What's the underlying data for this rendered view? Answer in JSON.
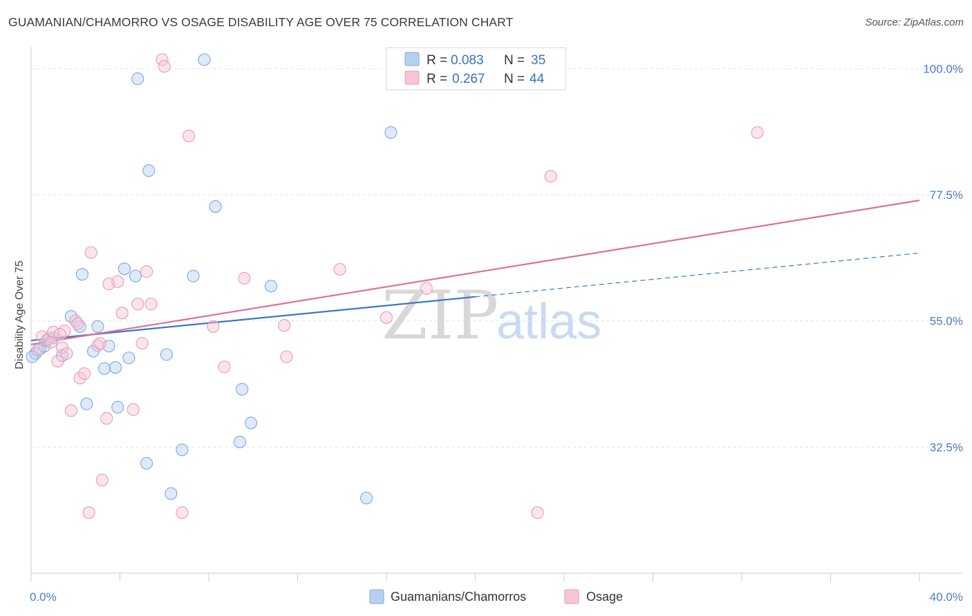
{
  "title": "GUAMANIAN/CHAMORRO VS OSAGE DISABILITY AGE OVER 75 CORRELATION CHART",
  "source": "Source: ZipAtlas.com",
  "watermark": {
    "zip": "ZIP",
    "atlas": "atlas"
  },
  "chart_data": {
    "type": "scatter",
    "title": "GUAMANIAN/CHAMORRO VS OSAGE DISABILITY AGE OVER 75 CORRELATION CHART",
    "xlabel": "",
    "ylabel": "Disability Age Over 75",
    "xlim": [
      0,
      40
    ],
    "ylim": [
      10,
      103
    ],
    "x_tick_labels": [
      {
        "value": 0,
        "label": "0.0%"
      },
      {
        "value": 40,
        "label": "40.0%"
      }
    ],
    "y_tick_labels": [
      {
        "value": 32.5,
        "label": "32.5%"
      },
      {
        "value": 55.0,
        "label": "55.0%"
      },
      {
        "value": 77.5,
        "label": "77.5%"
      },
      {
        "value": 100.0,
        "label": "100.0%"
      }
    ],
    "x_minor_ticks": [
      0,
      4,
      8,
      12,
      16,
      20,
      24,
      28,
      32,
      36,
      40
    ],
    "grid": true,
    "legend": {
      "position": "top-center",
      "entries": [
        {
          "r_label": "R =",
          "r_value": "0.083",
          "n_label": "N =",
          "n_value": "35"
        },
        {
          "r_label": "R =",
          "r_value": "0.267",
          "n_label": "N =",
          "n_value": "44"
        }
      ]
    },
    "series": [
      {
        "name": "Guamanians/Chamorros",
        "color": "#7aa8e0",
        "fill": "#b8d0f0",
        "line_color": "#3a78c9",
        "trend": {
          "x0": 0,
          "y0": 51.5,
          "x1": 20,
          "y1": 59.3,
          "dash_to_x": 40,
          "dash_to_y": 67.1
        },
        "points": [
          [
            0.2,
            49.2
          ],
          [
            0.4,
            50.0
          ],
          [
            0.6,
            50.5
          ],
          [
            0.7,
            51.5
          ],
          [
            1.0,
            52.0
          ],
          [
            1.4,
            48.8
          ],
          [
            1.8,
            55.8
          ],
          [
            2.2,
            54.0
          ],
          [
            2.3,
            63.3
          ],
          [
            2.5,
            40.2
          ],
          [
            2.8,
            49.6
          ],
          [
            3.0,
            54.0
          ],
          [
            3.3,
            46.5
          ],
          [
            3.5,
            50.5
          ],
          [
            3.8,
            46.7
          ],
          [
            3.9,
            39.6
          ],
          [
            4.2,
            64.3
          ],
          [
            4.4,
            48.4
          ],
          [
            4.7,
            63.0
          ],
          [
            4.8,
            98.2
          ],
          [
            5.2,
            29.6
          ],
          [
            5.3,
            81.8
          ],
          [
            6.1,
            49.0
          ],
          [
            6.3,
            24.2
          ],
          [
            6.8,
            32.0
          ],
          [
            7.3,
            63.0
          ],
          [
            7.8,
            101.6
          ],
          [
            8.3,
            75.4
          ],
          [
            9.4,
            33.4
          ],
          [
            9.5,
            42.8
          ],
          [
            9.9,
            36.8
          ],
          [
            10.8,
            61.2
          ],
          [
            15.1,
            23.4
          ],
          [
            16.2,
            88.6
          ],
          [
            0.05,
            48.6
          ]
        ]
      },
      {
        "name": "Osage",
        "color": "#e899b4",
        "fill": "#f6c6d6",
        "line_color": "#e06c98",
        "trend": {
          "x0": 0,
          "y0": 50.8,
          "x1": 40,
          "y1": 76.5
        },
        "points": [
          [
            0.3,
            49.8
          ],
          [
            0.5,
            52.2
          ],
          [
            0.8,
            51.8
          ],
          [
            1.0,
            53.0
          ],
          [
            1.2,
            47.8
          ],
          [
            1.4,
            50.2
          ],
          [
            1.5,
            53.2
          ],
          [
            1.6,
            49.2
          ],
          [
            1.8,
            39.0
          ],
          [
            2.0,
            55.0
          ],
          [
            2.1,
            54.5
          ],
          [
            2.2,
            44.8
          ],
          [
            2.4,
            45.6
          ],
          [
            2.6,
            20.8
          ],
          [
            2.7,
            67.2
          ],
          [
            3.0,
            50.6
          ],
          [
            3.1,
            51.0
          ],
          [
            3.2,
            26.6
          ],
          [
            3.4,
            37.6
          ],
          [
            3.5,
            61.6
          ],
          [
            3.9,
            62.0
          ],
          [
            4.1,
            56.4
          ],
          [
            4.6,
            39.2
          ],
          [
            4.8,
            58.0
          ],
          [
            5.0,
            51.0
          ],
          [
            5.2,
            63.8
          ],
          [
            5.4,
            58.0
          ],
          [
            5.9,
            101.6
          ],
          [
            6.0,
            100.4
          ],
          [
            6.8,
            20.8
          ],
          [
            7.1,
            88.0
          ],
          [
            8.2,
            54.0
          ],
          [
            8.7,
            46.8
          ],
          [
            9.6,
            62.6
          ],
          [
            11.4,
            54.2
          ],
          [
            11.5,
            48.6
          ],
          [
            13.9,
            64.2
          ],
          [
            16.0,
            55.6
          ],
          [
            17.8,
            60.8
          ],
          [
            22.8,
            20.8
          ],
          [
            23.4,
            80.8
          ],
          [
            32.7,
            88.6
          ],
          [
            0.9,
            51.2
          ],
          [
            1.3,
            52.6
          ]
        ]
      }
    ]
  },
  "bottom_legend": {
    "items": [
      {
        "label": "Guamanians/Chamorros"
      },
      {
        "label": "Osage"
      }
    ]
  }
}
